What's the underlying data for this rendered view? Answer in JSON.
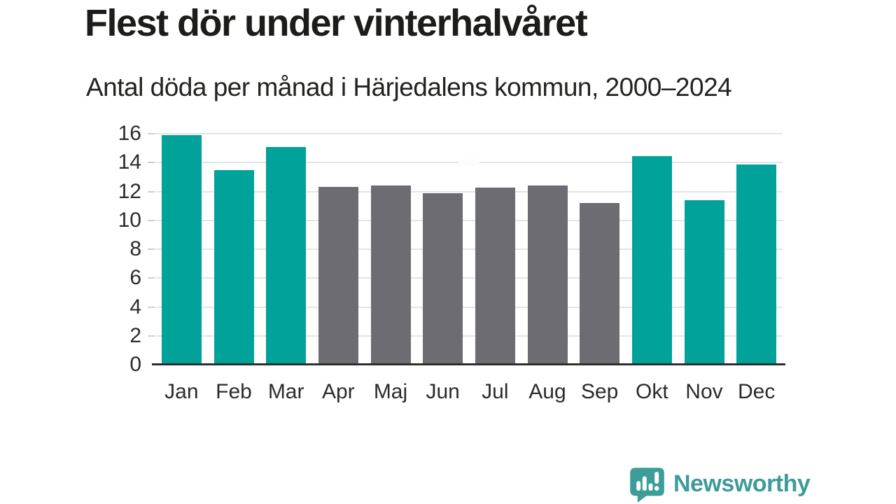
{
  "chart_data": {
    "type": "bar",
    "title": "Flest dör under vinterhalvåret",
    "subtitle": "Antal döda per månad i Härjedalens kommun, 2000–2024",
    "categories": [
      "Jan",
      "Feb",
      "Mar",
      "Apr",
      "Maj",
      "Jun",
      "Jul",
      "Aug",
      "Sep",
      "Okt",
      "Nov",
      "Dec"
    ],
    "values": [
      15.9,
      13.5,
      15.1,
      12.3,
      12.4,
      11.9,
      12.25,
      12.4,
      11.2,
      14.45,
      11.4,
      13.85
    ],
    "highlighted": [
      true,
      true,
      true,
      false,
      false,
      false,
      false,
      false,
      false,
      true,
      true,
      true
    ],
    "colors": {
      "highlight": "#00a29a",
      "default": "#6d6c72",
      "gridline": "#e4e4e4",
      "axis": "#2e2e2e"
    },
    "xlabel": "",
    "ylabel": "",
    "ylim": [
      0,
      16
    ],
    "yticks": [
      0,
      2,
      4,
      6,
      8,
      10,
      12,
      14,
      16
    ],
    "grid": true,
    "legend_position": "none"
  },
  "footer": {
    "brand": "Newsworthy",
    "logo_icon": "bar-chart-speech-bubble-icon",
    "brand_color": "#3d9b99"
  }
}
